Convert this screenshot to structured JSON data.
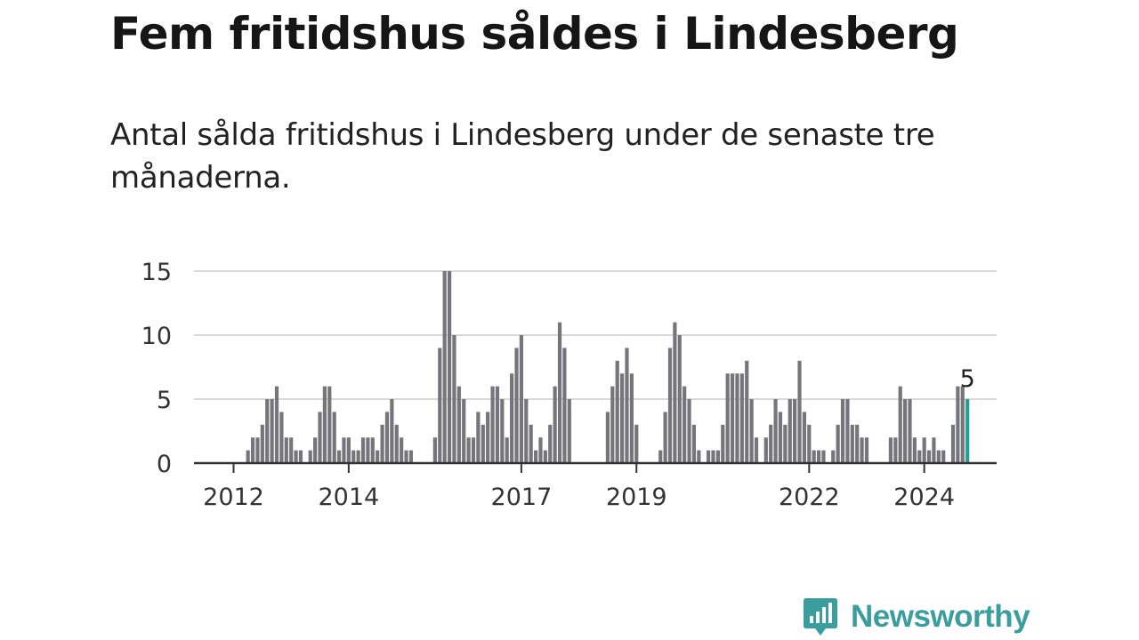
{
  "header": {
    "title": "Fem fritidshus såldes i Lindesberg",
    "subtitle": "Antal sålda fritidshus i Lindesberg under de senaste tre månaderna."
  },
  "brand": {
    "name": "Newsworthy",
    "color": "#3a9e9e",
    "icon": "bar-chart-speech-bubble-icon"
  },
  "colors": {
    "bar": "#76757b",
    "highlight": "#1f9e9e",
    "grid": "#d9d9d9",
    "axis": "#333333"
  },
  "chart_data": {
    "type": "bar",
    "title": "",
    "xlabel": "",
    "ylabel": "",
    "ylim": [
      0,
      15
    ],
    "y_ticks": [
      0,
      5,
      10,
      15
    ],
    "grid": true,
    "x_tick_labels": [
      {
        "label": "2012",
        "at": "2012-01"
      },
      {
        "label": "2014",
        "at": "2014-01"
      },
      {
        "label": "2017",
        "at": "2017-01"
      },
      {
        "label": "2019",
        "at": "2019-01"
      },
      {
        "label": "2022",
        "at": "2022-01"
      },
      {
        "label": "2024",
        "at": "2024-01"
      }
    ],
    "start_month": "2012-01",
    "values": [
      0,
      0,
      0,
      1,
      2,
      2,
      3,
      5,
      5,
      6,
      4,
      2,
      2,
      1,
      1,
      0,
      1,
      2,
      4,
      6,
      6,
      4,
      1,
      2,
      2,
      1,
      1,
      2,
      2,
      2,
      1,
      3,
      4,
      5,
      3,
      2,
      1,
      1,
      0,
      0,
      0,
      0,
      2,
      9,
      15,
      15,
      10,
      6,
      5,
      2,
      2,
      4,
      3,
      4,
      6,
      6,
      5,
      2,
      7,
      9,
      10,
      5,
      3,
      1,
      2,
      1,
      3,
      6,
      11,
      9,
      5,
      0,
      0,
      0,
      0,
      0,
      0,
      0,
      4,
      6,
      8,
      7,
      9,
      7,
      3,
      0,
      0,
      0,
      0,
      1,
      4,
      9,
      11,
      10,
      6,
      5,
      3,
      1,
      0,
      1,
      1,
      1,
      3,
      7,
      7,
      7,
      7,
      8,
      5,
      2,
      0,
      2,
      3,
      5,
      4,
      3,
      5,
      5,
      8,
      4,
      3,
      1,
      1,
      1,
      0,
      1,
      3,
      5,
      5,
      3,
      3,
      2,
      2,
      0,
      0,
      0,
      0,
      2,
      2,
      6,
      5,
      5,
      2,
      1,
      2,
      1,
      2,
      1,
      1,
      0,
      3,
      6,
      6,
      5
    ],
    "highlight_last": true,
    "last_label": "5"
  }
}
